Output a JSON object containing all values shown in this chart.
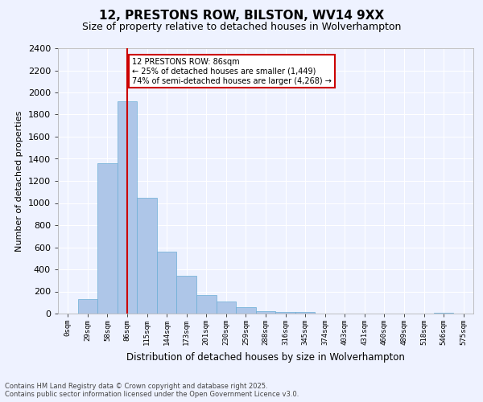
{
  "title": "12, PRESTONS ROW, BILSTON, WV14 9XX",
  "subtitle": "Size of property relative to detached houses in Wolverhampton",
  "xlabel": "Distribution of detached houses by size in Wolverhampton",
  "ylabel": "Number of detached properties",
  "footnote1": "Contains HM Land Registry data © Crown copyright and database right 2025.",
  "footnote2": "Contains public sector information licensed under the Open Government Licence v3.0.",
  "categories": [
    "0sqm",
    "29sqm",
    "58sqm",
    "86sqm",
    "115sqm",
    "144sqm",
    "173sqm",
    "201sqm",
    "230sqm",
    "259sqm",
    "288sqm",
    "316sqm",
    "345sqm",
    "374sqm",
    "403sqm",
    "431sqm",
    "460sqm",
    "489sqm",
    "518sqm",
    "546sqm",
    "575sqm"
  ],
  "values": [
    0,
    130,
    1360,
    1920,
    1050,
    560,
    340,
    165,
    110,
    60,
    25,
    15,
    15,
    0,
    0,
    0,
    0,
    0,
    0,
    10,
    0
  ],
  "bar_color": "#aec6e8",
  "bar_edge_color": "#6aaed6",
  "vline_x": 3,
  "vline_color": "#cc0000",
  "annotation_title": "12 PRESTONS ROW: 86sqm",
  "annotation_line2": "← 25% of detached houses are smaller (1,449)",
  "annotation_line3": "74% of semi-detached houses are larger (4,268) →",
  "annotation_box_color": "#cc0000",
  "ylim": [
    0,
    2400
  ],
  "yticks": [
    0,
    200,
    400,
    600,
    800,
    1000,
    1200,
    1400,
    1600,
    1800,
    2000,
    2200,
    2400
  ],
  "bg_color": "#eef2ff",
  "plot_bg_color": "#eef2ff",
  "grid_color": "#ffffff",
  "title_fontsize": 11,
  "subtitle_fontsize": 9
}
